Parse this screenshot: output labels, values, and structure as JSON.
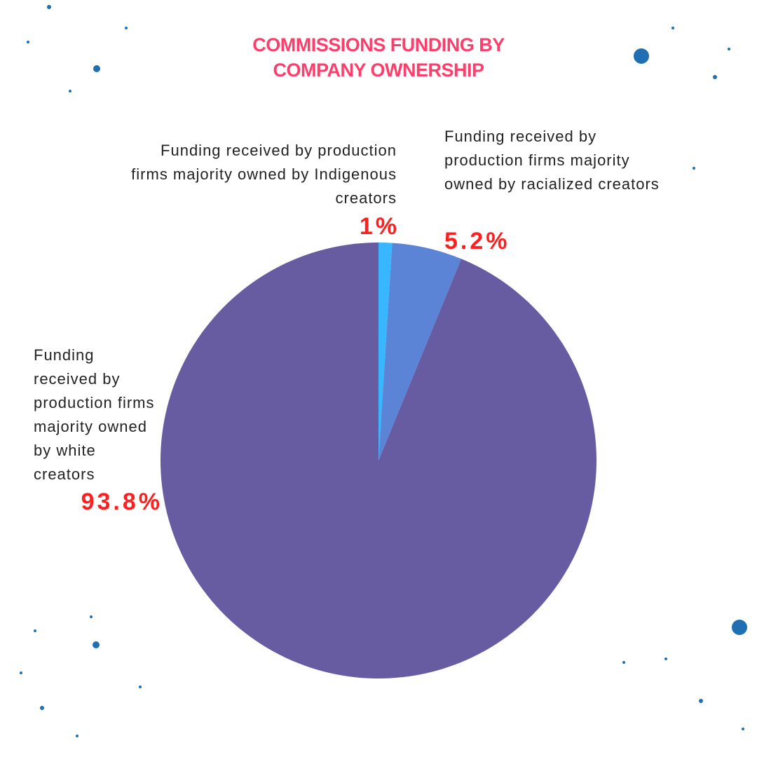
{
  "chart_data": {
    "type": "pie",
    "title": "COMMISSIONS FUNDING BY COMPANY OWNERSHIP",
    "categories": [
      "Funding received by production firms majority owned by Indigenous creators",
      "Funding received by production firms majority owned by racialized creators",
      "Funding received by production firms majority owned by white creators"
    ],
    "values": [
      1,
      5.2,
      93.8
    ],
    "value_labels": [
      "1%",
      "5.2%",
      "93.8%"
    ],
    "colors": [
      "#38b6ff",
      "#5b84d6",
      "#675ba2"
    ]
  }
}
